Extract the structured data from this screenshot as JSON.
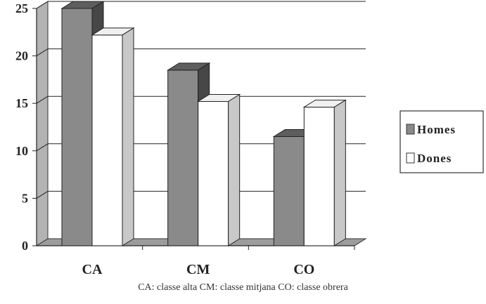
{
  "chart_data": {
    "type": "bar",
    "categories": [
      "CA",
      "CM",
      "CO"
    ],
    "series": [
      {
        "name": "Homes",
        "values": [
          25,
          18.5,
          11.5
        ]
      },
      {
        "name": "Dones",
        "values": [
          22.2,
          15.2,
          14.6
        ]
      }
    ],
    "ylim": [
      0,
      25
    ],
    "yticks": [
      0,
      5,
      10,
      15,
      20,
      25
    ],
    "grid": true,
    "legend": "right",
    "colors": {
      "Homes": "#8a8a8a",
      "Dones": "#ffffff"
    }
  },
  "caption": "CA: classe alta  CM: classe mitjana  CO: classe obrera"
}
